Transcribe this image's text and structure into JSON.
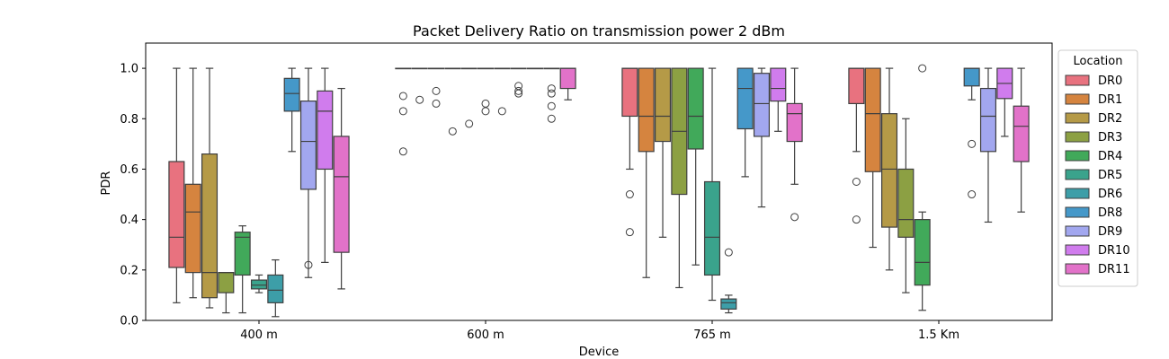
{
  "chart_data": {
    "type": "box",
    "title": "Packet Delivery Ratio on transmission power 2 dBm",
    "xlabel": "Device",
    "ylabel": "PDR",
    "ylim": [
      0,
      1.1
    ],
    "yticks": [
      "0.0",
      "0.2",
      "0.4",
      "0.6",
      "0.8",
      "1.0"
    ],
    "categories": [
      "400 m",
      "600 m",
      "765 m",
      "1.5 Km"
    ],
    "legend": {
      "title": "Location",
      "placement": "right"
    },
    "series": [
      {
        "name": "DR0",
        "color": "#e8727f",
        "boxes": [
          {
            "min": 0.07,
            "q1": 0.21,
            "median": 0.33,
            "q3": 0.63,
            "max": 1.0,
            "outliers": []
          },
          {
            "min": 1.0,
            "q1": 1.0,
            "median": 1.0,
            "q3": 1.0,
            "max": 1.0,
            "outliers": [
              0.67,
              0.83,
              0.89
            ]
          },
          {
            "min": 0.6,
            "q1": 0.81,
            "median": 1.0,
            "q3": 1.0,
            "max": 1.0,
            "outliers": [
              0.5,
              0.35
            ]
          },
          {
            "min": 0.67,
            "q1": 0.86,
            "median": 1.0,
            "q3": 1.0,
            "max": 1.0,
            "outliers": [
              0.55,
              0.4
            ]
          }
        ]
      },
      {
        "name": "DR1",
        "color": "#d5843f",
        "boxes": [
          {
            "min": 0.09,
            "q1": 0.19,
            "median": 0.43,
            "q3": 0.54,
            "max": 1.0,
            "outliers": []
          },
          {
            "min": 1.0,
            "q1": 1.0,
            "median": 1.0,
            "q3": 1.0,
            "max": 1.0,
            "outliers": [
              0.875
            ]
          },
          {
            "min": 0.17,
            "q1": 0.67,
            "median": 0.81,
            "q3": 1.0,
            "max": 1.0,
            "outliers": []
          },
          {
            "min": 0.29,
            "q1": 0.59,
            "median": 0.82,
            "q3": 1.0,
            "max": 1.0,
            "outliers": []
          }
        ]
      },
      {
        "name": "DR2",
        "color": "#b59a47",
        "boxes": [
          {
            "min": 0.05,
            "q1": 0.09,
            "median": 0.19,
            "q3": 0.66,
            "max": 1.0,
            "outliers": []
          },
          {
            "min": 1.0,
            "q1": 1.0,
            "median": 1.0,
            "q3": 1.0,
            "max": 1.0,
            "outliers": [
              0.91,
              0.86
            ]
          },
          {
            "min": 0.33,
            "q1": 0.71,
            "median": 0.81,
            "q3": 1.0,
            "max": 1.0,
            "outliers": []
          },
          {
            "min": 0.2,
            "q1": 0.37,
            "median": 0.6,
            "q3": 0.82,
            "max": 1.0,
            "outliers": []
          }
        ]
      },
      {
        "name": "DR3",
        "color": "#8ca043",
        "boxes": [
          {
            "min": 0.03,
            "q1": 0.11,
            "median": 0.19,
            "q3": 0.19,
            "max": 0.19,
            "outliers": []
          },
          {
            "min": 1.0,
            "q1": 1.0,
            "median": 1.0,
            "q3": 1.0,
            "max": 1.0,
            "outliers": [
              0.75
            ]
          },
          {
            "min": 0.13,
            "q1": 0.5,
            "median": 0.75,
            "q3": 1.0,
            "max": 1.0,
            "outliers": []
          },
          {
            "min": 0.11,
            "q1": 0.33,
            "median": 0.4,
            "q3": 0.6,
            "max": 0.8,
            "outliers": []
          }
        ]
      },
      {
        "name": "DR4",
        "color": "#41a95a",
        "boxes": [
          {
            "min": 0.03,
            "q1": 0.18,
            "median": 0.33,
            "q3": 0.35,
            "max": 0.375,
            "outliers": []
          },
          {
            "min": 1.0,
            "q1": 1.0,
            "median": 1.0,
            "q3": 1.0,
            "max": 1.0,
            "outliers": [
              0.78
            ]
          },
          {
            "min": 0.22,
            "q1": 0.68,
            "median": 0.81,
            "q3": 1.0,
            "max": 1.0,
            "outliers": []
          },
          {
            "min": 0.04,
            "q1": 0.14,
            "median": 0.23,
            "q3": 0.4,
            "max": 0.43,
            "outliers": [
              1.0
            ]
          }
        ]
      },
      {
        "name": "DR5",
        "color": "#3aa38c",
        "boxes": [
          {
            "min": 0.11,
            "q1": 0.125,
            "median": 0.14,
            "q3": 0.16,
            "max": 0.18,
            "outliers": []
          },
          {
            "min": 1.0,
            "q1": 1.0,
            "median": 1.0,
            "q3": 1.0,
            "max": 1.0,
            "outliers": [
              0.86,
              0.83
            ]
          },
          {
            "min": 0.08,
            "q1": 0.18,
            "median": 0.33,
            "q3": 0.55,
            "max": 1.0,
            "outliers": []
          },
          null
        ]
      },
      {
        "name": "DR6",
        "color": "#3d9ea8",
        "boxes": [
          {
            "min": 0.015,
            "q1": 0.07,
            "median": 0.12,
            "q3": 0.18,
            "max": 0.24,
            "outliers": []
          },
          {
            "min": 1.0,
            "q1": 1.0,
            "median": 1.0,
            "q3": 1.0,
            "max": 1.0,
            "outliers": [
              0.83
            ]
          },
          {
            "min": 0.03,
            "q1": 0.045,
            "median": 0.07,
            "q3": 0.085,
            "max": 0.1,
            "outliers": [
              0.27
            ]
          },
          null
        ]
      },
      {
        "name": "DR8",
        "color": "#4598c9",
        "boxes": [
          {
            "min": 0.67,
            "q1": 0.83,
            "median": 0.9,
            "q3": 0.96,
            "max": 1.0,
            "outliers": []
          },
          {
            "min": 1.0,
            "q1": 1.0,
            "median": 1.0,
            "q3": 1.0,
            "max": 1.0,
            "outliers": [
              0.93,
              0.91,
              0.9
            ]
          },
          {
            "min": 0.57,
            "q1": 0.76,
            "median": 0.92,
            "q3": 1.0,
            "max": 1.0,
            "outliers": []
          },
          {
            "min": 0.875,
            "q1": 0.93,
            "median": 1.0,
            "q3": 1.0,
            "max": 1.0,
            "outliers": [
              0.7,
              0.5
            ]
          }
        ]
      },
      {
        "name": "DR9",
        "color": "#a2a7ef",
        "boxes": [
          {
            "min": 0.17,
            "q1": 0.52,
            "median": 0.71,
            "q3": 0.87,
            "max": 1.0,
            "outliers": [
              0.22
            ]
          },
          {
            "min": 1.0,
            "q1": 1.0,
            "median": 1.0,
            "q3": 1.0,
            "max": 1.0,
            "outliers": []
          },
          {
            "min": 0.45,
            "q1": 0.73,
            "median": 0.86,
            "q3": 0.98,
            "max": 1.0,
            "outliers": []
          },
          {
            "min": 0.39,
            "q1": 0.67,
            "median": 0.81,
            "q3": 0.92,
            "max": 1.0,
            "outliers": []
          }
        ]
      },
      {
        "name": "DR10",
        "color": "#d07ced",
        "boxes": [
          {
            "min": 0.23,
            "q1": 0.6,
            "median": 0.83,
            "q3": 0.91,
            "max": 1.0,
            "outliers": []
          },
          {
            "min": 1.0,
            "q1": 1.0,
            "median": 1.0,
            "q3": 1.0,
            "max": 1.0,
            "outliers": [
              0.92,
              0.9,
              0.85,
              0.8
            ]
          },
          {
            "min": 0.75,
            "q1": 0.87,
            "median": 0.92,
            "q3": 1.0,
            "max": 1.0,
            "outliers": []
          },
          {
            "min": 0.73,
            "q1": 0.88,
            "median": 0.94,
            "q3": 1.0,
            "max": 1.0,
            "outliers": []
          }
        ]
      },
      {
        "name": "DR11",
        "color": "#e272c9",
        "boxes": [
          {
            "min": 0.125,
            "q1": 0.27,
            "median": 0.57,
            "q3": 0.73,
            "max": 0.92,
            "outliers": []
          },
          {
            "min": 0.875,
            "q1": 0.92,
            "median": 1.0,
            "q3": 1.0,
            "max": 1.0,
            "outliers": []
          },
          {
            "min": 0.54,
            "q1": 0.71,
            "median": 0.82,
            "q3": 0.86,
            "max": 1.0,
            "outliers": [
              0.41
            ]
          },
          {
            "min": 0.43,
            "q1": 0.63,
            "median": 0.77,
            "q3": 0.85,
            "max": 1.0,
            "outliers": []
          }
        ]
      }
    ]
  }
}
